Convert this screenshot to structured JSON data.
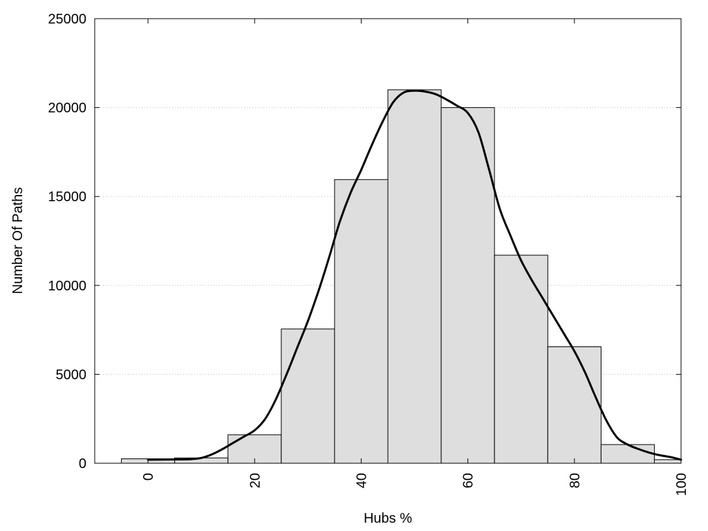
{
  "chart_data": {
    "type": "bar",
    "title": "",
    "xlabel": "Hubs %",
    "ylabel": "Number Of Paths",
    "xlim": [
      -10,
      100
    ],
    "ylim": [
      0,
      25000
    ],
    "x_ticks": [
      0,
      20,
      40,
      60,
      80,
      100
    ],
    "y_ticks": [
      0,
      5000,
      10000,
      15000,
      20000,
      25000
    ],
    "grid": "horizontal dotted",
    "legend": "none",
    "bin_width": 10,
    "bins": [
      {
        "center": 0,
        "value": 250
      },
      {
        "center": 10,
        "value": 300
      },
      {
        "center": 20,
        "value": 1600
      },
      {
        "center": 30,
        "value": 7550
      },
      {
        "center": 40,
        "value": 15950
      },
      {
        "center": 50,
        "value": 21000
      },
      {
        "center": 60,
        "value": 20000
      },
      {
        "center": 70,
        "value": 11700
      },
      {
        "center": 80,
        "value": 6550
      },
      {
        "center": 90,
        "value": 1050
      },
      {
        "center": 100,
        "value": 200
      }
    ],
    "density_curve": {
      "x": [
        0,
        4,
        8,
        10,
        12,
        14,
        16,
        18,
        20,
        22,
        24,
        26,
        28,
        30,
        32,
        34,
        36,
        38,
        40,
        42,
        44,
        46,
        48,
        50,
        52,
        54,
        56,
        58,
        60,
        62,
        64,
        66,
        68,
        70,
        72,
        74,
        76,
        78,
        80,
        82,
        84,
        86,
        88,
        90,
        92,
        94,
        96,
        98,
        100
      ],
      "y": [
        200,
        210,
        230,
        300,
        500,
        800,
        1150,
        1500,
        1850,
        2500,
        3600,
        5000,
        6500,
        8000,
        9700,
        11600,
        13600,
        15200,
        16500,
        17900,
        19200,
        20300,
        20850,
        20950,
        20900,
        20750,
        20450,
        20100,
        19700,
        18600,
        16500,
        14300,
        12800,
        11400,
        10300,
        9300,
        8300,
        7300,
        6300,
        5100,
        3700,
        2400,
        1450,
        1050,
        800,
        600,
        450,
        350,
        200
      ],
      "color": "#000000"
    },
    "colors": {
      "bar_fill": "#dedede",
      "bar_stroke": "#000000",
      "grid": "#bbbbbb",
      "axis": "#000000"
    }
  }
}
